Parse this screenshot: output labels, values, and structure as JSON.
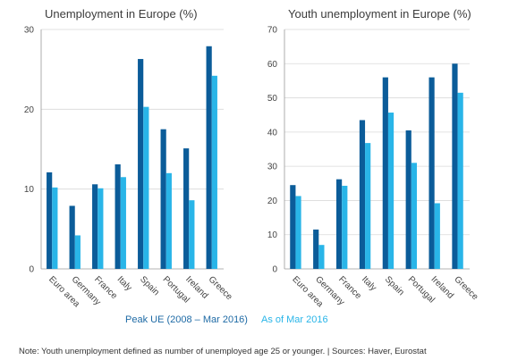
{
  "colors": {
    "peak": "#0b5c99",
    "now": "#29b5e8",
    "axis": "#9a9a9a",
    "grid": "#d9d9d9"
  },
  "legend": {
    "peak": "Peak UE (2008 – Mar 2016)",
    "now": "As of Mar 2016"
  },
  "footnote": "Note: Youth unemployment defined as number of unemployed age 25 or younger. | Sources: Haver, Eurostat",
  "chart_data": [
    {
      "type": "bar",
      "title": "Unemployment in Europe (%)",
      "categories": [
        "Euro area",
        "Germany",
        "France",
        "Italy",
        "Spain",
        "Portugal",
        "Ireland",
        "Greece"
      ],
      "series": [
        {
          "name": "Peak UE (2008 – Mar 2016)",
          "values": [
            12.1,
            7.9,
            10.6,
            13.1,
            26.3,
            17.5,
            15.1,
            27.9
          ]
        },
        {
          "name": "As of Mar 2016",
          "values": [
            10.2,
            4.2,
            10.1,
            11.5,
            20.3,
            12.0,
            8.6,
            24.2
          ]
        }
      ],
      "ylim": [
        0,
        30
      ],
      "yticks": [
        0,
        10,
        20,
        30
      ],
      "grid": true
    },
    {
      "type": "bar",
      "title": "Youth unemployment in Europe (%)",
      "categories": [
        "Euro area",
        "Germany",
        "France",
        "Italy",
        "Spain",
        "Portugal",
        "Ireland",
        "Greece"
      ],
      "series": [
        {
          "name": "Peak UE (2008 – Mar 2016)",
          "values": [
            24.5,
            11.5,
            26.2,
            43.5,
            56.0,
            40.5,
            56.0,
            60.0
          ]
        },
        {
          "name": "As of Mar 2016",
          "values": [
            21.3,
            7.0,
            24.3,
            36.8,
            45.7,
            31.0,
            19.2,
            51.5
          ]
        }
      ],
      "ylim": [
        0,
        70
      ],
      "yticks": [
        0,
        10,
        20,
        30,
        40,
        50,
        60,
        70
      ],
      "grid": true
    }
  ]
}
